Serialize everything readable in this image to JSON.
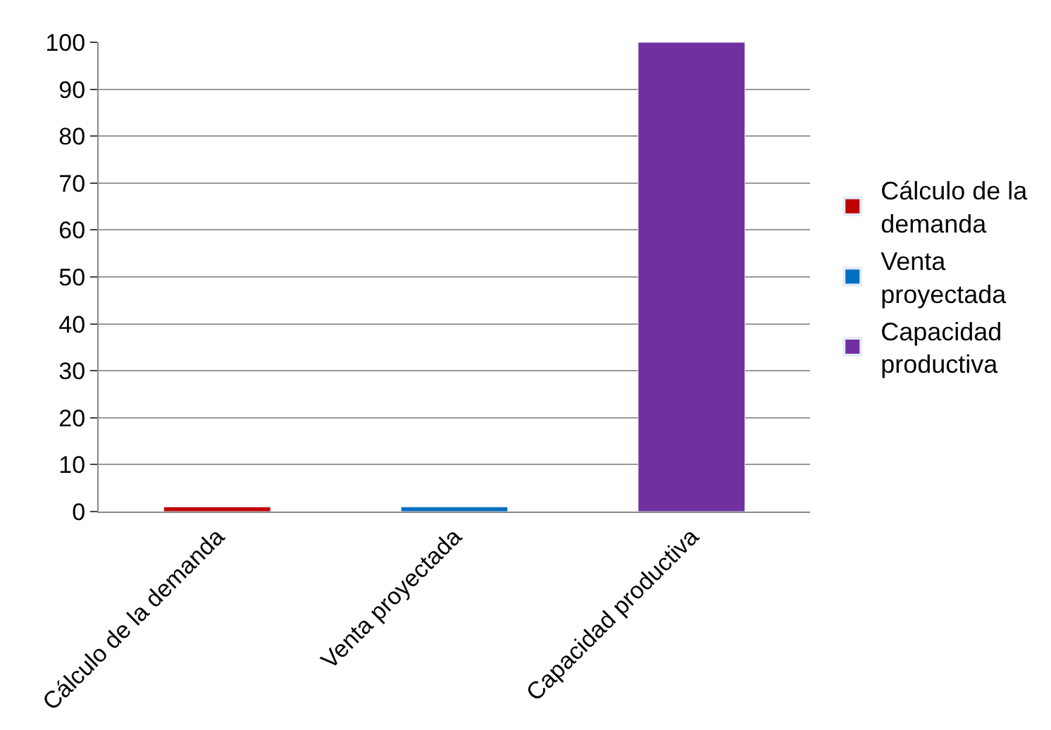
{
  "chart_data": {
    "type": "bar",
    "categories": [
      "Cálculo de la demanda",
      "Venta proyectada",
      "Capacidad productiva"
    ],
    "series": [
      {
        "name": "Cálculo de la demanda",
        "color": "#c00000",
        "values": [
          1,
          null,
          null
        ]
      },
      {
        "name": "Venta proyectada",
        "color": "#0070c0",
        "values": [
          null,
          1,
          null
        ]
      },
      {
        "name": "Capacidad productiva",
        "color": "#7030a0",
        "values": [
          null,
          null,
          100
        ]
      }
    ],
    "ylim": [
      0,
      100
    ],
    "yticks": [
      0,
      10,
      20,
      30,
      40,
      50,
      60,
      70,
      80,
      90,
      100
    ],
    "grid": "y",
    "legend": "right"
  }
}
